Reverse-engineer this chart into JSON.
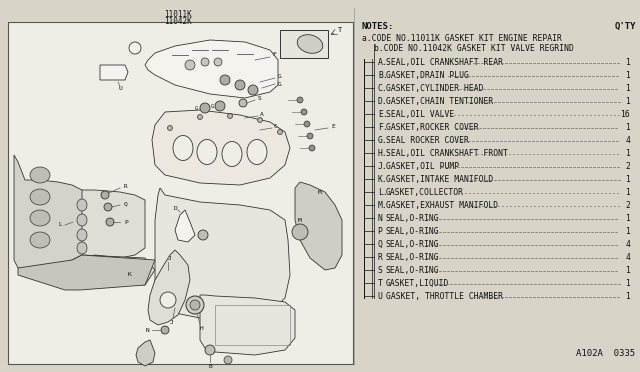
{
  "bg_color": "#d8d4c8",
  "right_bg": "#e0dcd0",
  "diagram_title1": "11011K",
  "diagram_title2": "11042K",
  "notes_header": "NOTES:",
  "qty_header": "Q'TY",
  "note_a": "a.CODE NO.11011K GASKET KIT ENGINE REPAIR",
  "note_b": "b.CODE NO.11042K GASKET KIT VALVE REGRIND",
  "parts": [
    {
      "letter": "A",
      "dot": true,
      "name": "SEAL,OIL CRANKSHAFT REAR",
      "qty": "1"
    },
    {
      "letter": "B",
      "dot": true,
      "name": "GASKET,DRAIN PLUG",
      "qty": "1"
    },
    {
      "letter": "C",
      "dot": true,
      "name": "GASKET,CYLINDER HEAD",
      "qty": "1"
    },
    {
      "letter": "D",
      "dot": true,
      "name": "GASKET,CHAIN TENTIONER",
      "qty": "1"
    },
    {
      "letter": "E",
      "dot": true,
      "name": "SEAL,OIL VALVE",
      "qty": "16"
    },
    {
      "letter": "F",
      "dot": true,
      "name": "GASKET,ROCKER COVER",
      "qty": "1"
    },
    {
      "letter": "G",
      "dot": true,
      "name": "SEAL ROCKER COVER",
      "qty": "4"
    },
    {
      "letter": "H",
      "dot": true,
      "name": "SEAL,OIL CRANKSHAFT FRONT",
      "qty": "1"
    },
    {
      "letter": "J",
      "dot": true,
      "name": "GASKET,OIL PUMP",
      "qty": "2"
    },
    {
      "letter": "K",
      "dot": true,
      "name": "GASKET,INTAKE MANIFOLD",
      "qty": "1"
    },
    {
      "letter": "L",
      "dot": true,
      "name": "GASKET,COLLECTOR",
      "qty": "1"
    },
    {
      "letter": "M",
      "dot": true,
      "name": "GASKET,EXHAUST MANIFOLD",
      "qty": "2"
    },
    {
      "letter": "N",
      "dot": false,
      "name": "SEAL,O-RING",
      "qty": "1"
    },
    {
      "letter": "P",
      "dot": false,
      "name": "SEAL,O-RING",
      "qty": "1"
    },
    {
      "letter": "Q",
      "dot": false,
      "name": "SEAL,O-RING",
      "qty": "4"
    },
    {
      "letter": "R",
      "dot": false,
      "name": "SEAL,O-RING",
      "qty": "4"
    },
    {
      "letter": "S",
      "dot": false,
      "name": "SEAL,O-RING",
      "qty": "1"
    },
    {
      "letter": "T",
      "dot": false,
      "name": "GASKET,LIQUID",
      "qty": "1"
    },
    {
      "letter": "U",
      "dot": false,
      "name": "GASKET, THROTTLE CHAMBER",
      "qty": "1"
    }
  ],
  "doc_number": "A102A  0335",
  "line_color": "#222222",
  "text_color": "#111111",
  "part_fill": "#f5f3ee",
  "part_edge": "#333333"
}
